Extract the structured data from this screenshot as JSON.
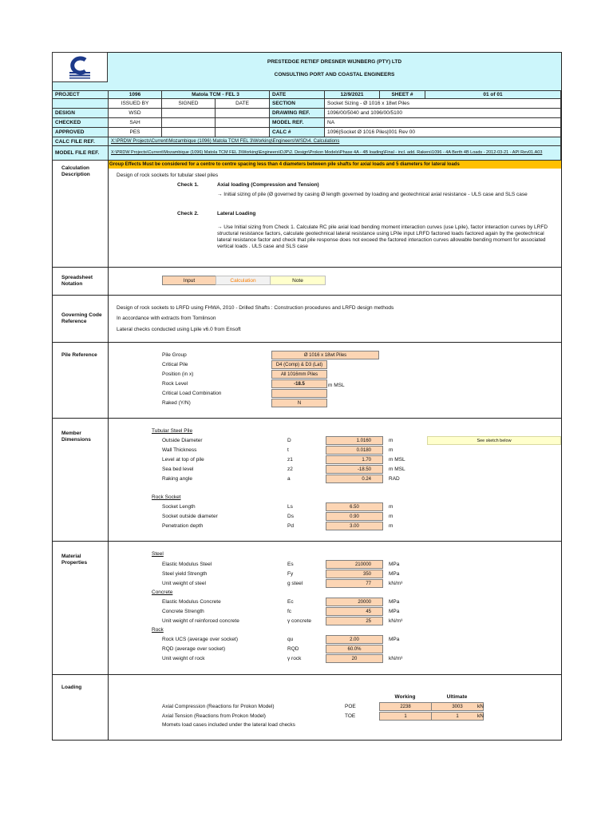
{
  "header": {
    "company": "PRESTEDGE  RETIEF  DRESNER  WIJNBERG (PTY) LTD",
    "subtitle": "CONSULTING PORT AND COASTAL ENGINEERS",
    "logo_icon": "prdw-logo-icon",
    "project_label": "PROJECT",
    "project_no": "1096",
    "project_name": "Matola TCM - FEL 3",
    "date_label": "DATE",
    "date": "12/9/2021",
    "sheet_label": "SHEET #",
    "sheet": "01 of 01",
    "issued_by": "ISSUED BY",
    "signed": "SIGNED",
    "date_col": "DATE",
    "section_label": "SECTION",
    "section": "Socket Sizing - Ø 1016 x 18wt Piles",
    "design_label": "DESIGN",
    "design": "WSD",
    "drawing_label": "DRAWING REF.",
    "drawing": "1096/00/5040 and 1096/00/5100",
    "checked_label": "CHECKED",
    "checked": "SAH",
    "model_label": "MODEL REF.",
    "model": "NA",
    "approved_label": "APPROVED",
    "approved": "PES",
    "calc_label": "CALC #",
    "calc": "1096|Socket Ø 1016 Piles|001 Rev 00",
    "calc_file_label": "CALC FILE REF.",
    "calc_file": "X:\\PRDW Projects\\Current\\Mozambique (1096) Matola TCM FEL 3\\Working\\Engineers\\WSD\\4. Calculations",
    "model_file_label": "MODEL FILE REF.",
    "model_file": "X:\\PRDW Projects\\Current\\Mozambique (1096) Matola TCM FEL 3\\Working\\Engineers\\DJP\\2. Design\\Prokon Models\\Phase 4A - 4B loading\\Final - incl. add. Rakers\\1096 - 4A Berth 4B Loads - 2012-03-21 - API Rev01.A03"
  },
  "description": {
    "label": "Calculation Description",
    "warning": "Group Effects Must be considered for a centre to centre spacing less than 4 diameters between pile shafts for axial loads and 5 diameters for lateral loads",
    "intro": "Design of rock sockets for tubular steel piles",
    "check1_label": "Check 1.",
    "check1_title": "Axial loading (Compression and Tension)",
    "check1_text": "→ Initial sizing of pile (Ø governed by casing Ø length governed by loading and geotechnical axial resistance - ULS case and SLS case",
    "check2_label": "Check 2.",
    "check2_title": "Lateral Loading",
    "check2_text": "→ Use Initial sizing from Check 1. Calculate RC pile axial load bending moment interaction curves (use Lpile), factor interaction curves by LRFD structural resistance factors, calculate geotechnical lateral resistance using LPile input LRFD factored loads factored again by the geotechnical lateral resistance factor and check that pile response does not exceed the factored interaction curves allowable bending moment for associated vertical loads . ULS case and SLS case"
  },
  "notation": {
    "label": "Spreadsheet Notation",
    "input": "Input",
    "calculation": "Calculation",
    "note": "Note",
    "colors": {
      "input": "#fcd5b4",
      "calculation": "#f2f2f2",
      "calculation_text": "#fa7d00",
      "note": "#ffffcc"
    }
  },
  "code": {
    "label": "Governing Code Reference",
    "lines": [
      "Design of rock sockets to LRFD using FHWA, 2010 - Drilled Shafts : Construction procedures and LRFD design methods",
      "In accordance with extracts from Tomlinson",
      "Lateral checks conducted using Lpile v6.0 from Ensoft"
    ]
  },
  "pile_ref": {
    "label": "Pile Reference",
    "rows": [
      {
        "name": "Pile Group",
        "value": "Ø 1016 x 18wt Piles"
      },
      {
        "name": "Critical Pile",
        "value": "D4 (Comp) & D3 (Lat)"
      },
      {
        "name": "Position (in x)",
        "value": "All 1016mm Piles"
      },
      {
        "name": "Rock Level",
        "value": "-18.5",
        "unit": "m MSL"
      },
      {
        "name": "Critical Load Combination",
        "value": ""
      },
      {
        "name": "Raked  (Y/N)",
        "value": "N"
      }
    ]
  },
  "member": {
    "label": "Member Dimensions",
    "note": "See sketch below",
    "tubular_title": "Tubular Steel Pile",
    "tubular": [
      {
        "name": "Outside Diameter",
        "sym": "D",
        "value": "1.0160",
        "unit": "m"
      },
      {
        "name": "Wall Thickness",
        "sym": "t",
        "value": "0.0180",
        "unit": "m"
      },
      {
        "name": "Level at top of pile",
        "sym": "z1",
        "value": "1.70",
        "unit": "m MSL"
      },
      {
        "name": "Sea bed level",
        "sym": "z2",
        "value": "-18.50",
        "unit": "m MSL"
      },
      {
        "name": "Raking angle",
        "sym": "a",
        "value": "0.24",
        "unit": "RAD"
      }
    ],
    "socket_title": "Rock Socket",
    "socket": [
      {
        "name": "Socket Length",
        "sym": "Ls",
        "value": "6.50",
        "unit": "m"
      },
      {
        "name": "Socket outside diameter",
        "sym": "Ds",
        "value": "0.90",
        "unit": "m"
      },
      {
        "name": "Penetration depth",
        "sym": "Pd",
        "value": "3.00",
        "unit": "m"
      }
    ]
  },
  "material": {
    "label": "Material Properties",
    "steel_title": "Steel",
    "steel": [
      {
        "name": "Elastic Modulus Steel",
        "sym": "Es",
        "value": "210000",
        "unit": "MPa"
      },
      {
        "name": "Steel yield Strength",
        "sym": "Fy",
        "value": "350",
        "unit": "MPa"
      },
      {
        "name": "Unit weight of steel",
        "sym": "g steel",
        "value": "77",
        "unit": "kN/m³"
      }
    ],
    "concrete_title": "Concrete",
    "concrete": [
      {
        "name": "Elastic Modulus Concrete",
        "sym": "Ec",
        "value": "20000",
        "unit": "MPa"
      },
      {
        "name": "Concrete Strength",
        "sym": "fc",
        "value": "45",
        "unit": "MPa"
      },
      {
        "name": "Unit weight of reinforced concrete",
        "sym": "γ concrete",
        "value": "25",
        "unit": "kN/m³"
      }
    ],
    "rock_title": "Rock",
    "rock": [
      {
        "name": "Rock UCS (average over socket)",
        "sym": "qu",
        "value": "2.00",
        "unit": "MPa"
      },
      {
        "name": "RQD (average over socket)",
        "sym": "RQD",
        "value": "60.0%",
        "unit": ""
      },
      {
        "name": "Unit weight of rock",
        "sym": "γ rock",
        "value": "20",
        "unit": "kN/m³"
      }
    ]
  },
  "loading": {
    "label": "Loading",
    "working": "Working",
    "ultimate": "Ultimate",
    "rows": [
      {
        "name": "Axial Compression (Reactions for Prokon Model)",
        "sym": "POE",
        "working": "2238",
        "ultimate": "3003",
        "unit": "kN"
      },
      {
        "name": "Axial Tension (Reactions from Prokon Model)",
        "sym": "TOE",
        "working": "1",
        "ultimate": "1",
        "unit": "kN"
      }
    ],
    "note": "Momets load cases included under the lateral load checks"
  }
}
